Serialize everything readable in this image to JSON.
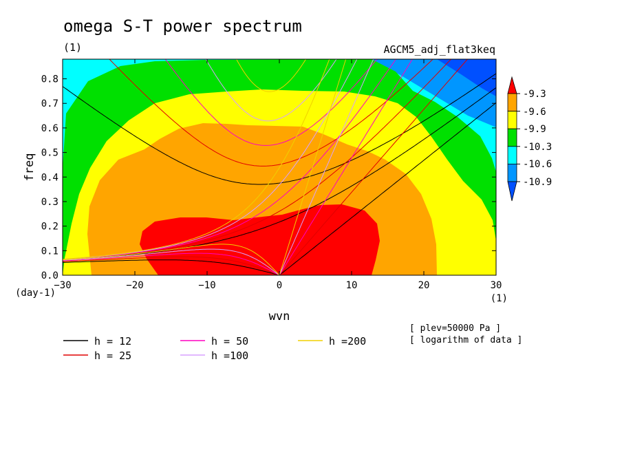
{
  "chart_data": {
    "type": "contour",
    "title": "omega S-T power spectrum",
    "subtitle_left": "(1)",
    "subtitle_right": "AGCM5_adj_flat3keq",
    "xlabel": "wvn",
    "ylabel": "freq",
    "x_unit": "(1)",
    "y_unit": "(day-1)",
    "xlim": [
      -30,
      30
    ],
    "ylim": [
      0,
      0.88
    ],
    "xticks": [
      -30,
      -20,
      -10,
      0,
      10,
      20,
      30
    ],
    "yticks": [
      0.0,
      0.1,
      0.2,
      0.3,
      0.4,
      0.5,
      0.6,
      0.7,
      0.8
    ],
    "colorbar": {
      "labels": [
        "-9.3",
        "-9.6",
        "-9.9",
        "-10.3",
        "-10.6",
        "-10.9"
      ],
      "colors": [
        "#ff0000",
        "#ffa500",
        "#ffff00",
        "#00e000",
        "#00ffff",
        "#0096ff",
        "#0050ff"
      ]
    },
    "dispersion_curves": [
      {
        "label": "h = 12",
        "h": 12,
        "color": "#000000"
      },
      {
        "label": "h = 25",
        "h": 25,
        "color": "#e00000"
      },
      {
        "label": "h = 50",
        "h": 50,
        "color": "#ff00c0"
      },
      {
        "label": "h =100",
        "h": 100,
        "color": "#d8a0ff"
      },
      {
        "label": "h =200",
        "h": 200,
        "color": "#f0d000"
      }
    ],
    "notes": [
      "[ plev=50000 Pa ]",
      "[ logarithm of data ]"
    ]
  }
}
